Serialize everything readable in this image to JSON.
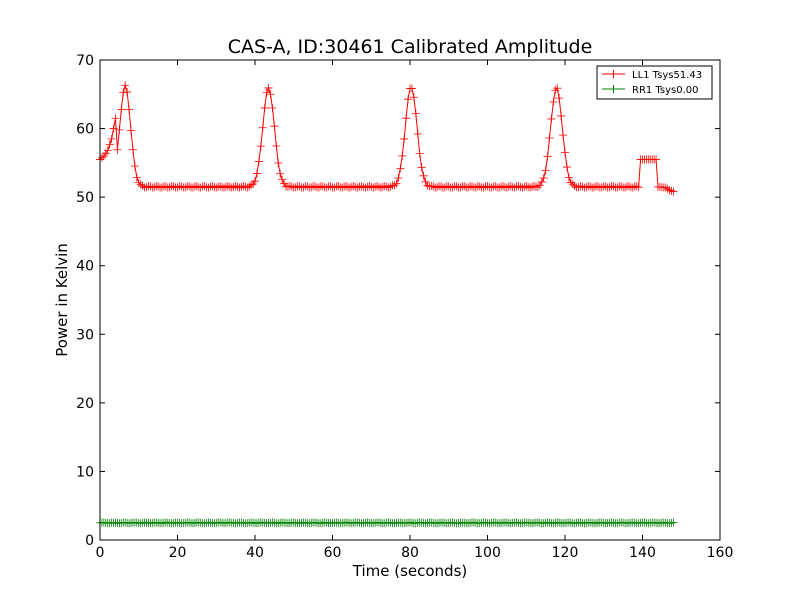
{
  "chart_data": {
    "type": "line",
    "title": "CAS-A, ID:30461 Calibrated Amplitude",
    "xlabel": "Time (seconds)",
    "ylabel": "Power in Kelvin",
    "xlim": [
      0,
      160
    ],
    "ylim": [
      0,
      70
    ],
    "xticks": [
      0,
      20,
      40,
      60,
      80,
      100,
      120,
      140,
      160
    ],
    "yticks": [
      0,
      10,
      20,
      30,
      40,
      50,
      60,
      70
    ],
    "grid": false,
    "legend_position": "top-right",
    "series": [
      {
        "name": "LL1 Tsys51.43",
        "color": "#ff0000",
        "marker": "plus",
        "x_start": 0,
        "x_end": 148,
        "baseline": 51.5,
        "peaks": [
          {
            "center": 6.5,
            "height": 66.2,
            "width": 1.4
          },
          {
            "center": 43.5,
            "height": 65.9,
            "width": 1.5
          },
          {
            "center": 80.3,
            "height": 66.1,
            "width": 1.5
          },
          {
            "center": 117.8,
            "height": 65.9,
            "width": 1.5
          }
        ],
        "start_values": [
          {
            "x": 0,
            "y": 55.5
          },
          {
            "x": 1,
            "y": 56
          },
          {
            "x": 2,
            "y": 56.8
          },
          {
            "x": 3,
            "y": 58.5
          },
          {
            "x": 4,
            "y": 61.5
          }
        ],
        "step_segment": {
          "x_start": 139.5,
          "x_end": 143.5,
          "y": 55.5
        },
        "end_values": [
          {
            "x": 144,
            "y": 51.5
          },
          {
            "x": 146,
            "y": 51.4
          },
          {
            "x": 147,
            "y": 51
          },
          {
            "x": 148,
            "y": 50.8
          }
        ]
      },
      {
        "name": "RR1 Tsys0.00",
        "color": "#008000",
        "marker": "plus",
        "x_start": 0,
        "x_end": 148,
        "baseline": 2.5,
        "values_note_free": true
      }
    ]
  }
}
